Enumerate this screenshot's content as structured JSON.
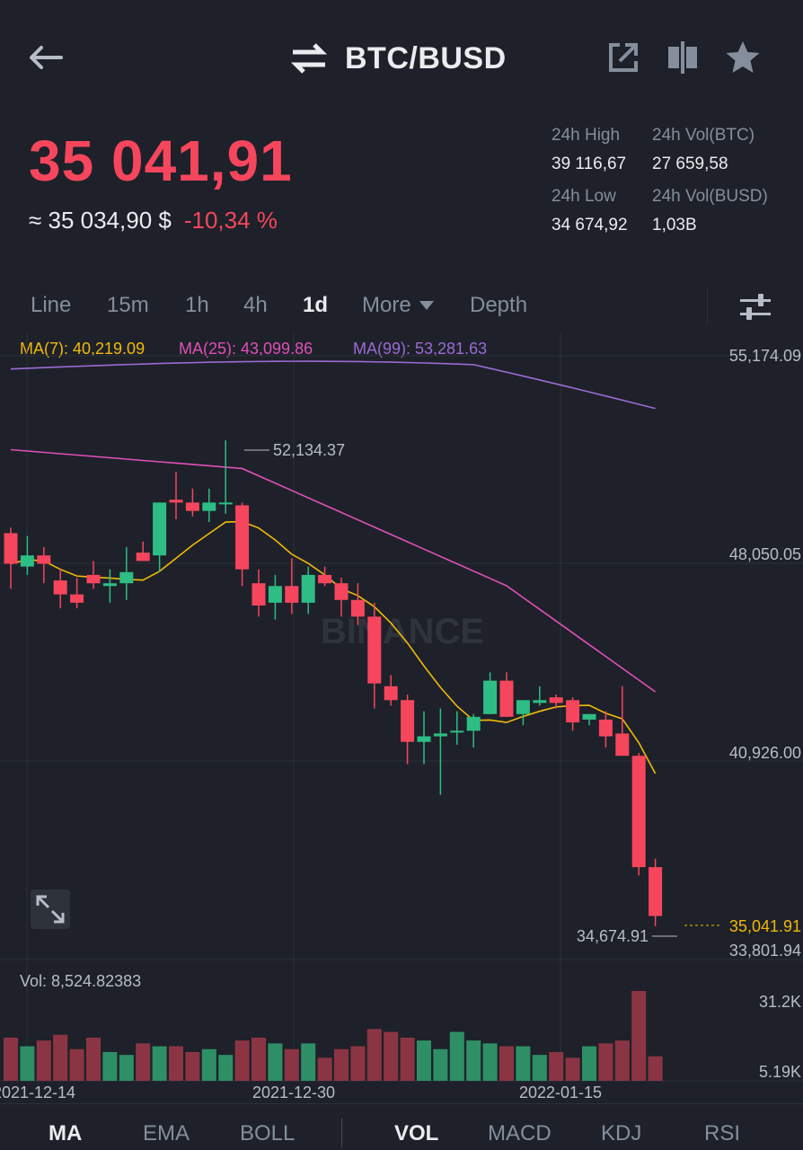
{
  "header": {
    "back_icon": "arrow-left-icon",
    "swap_icon": "swap-arrows-icon",
    "title": "BTC/BUSD",
    "share_icon": "share-icon",
    "compare_icon": "candle-compare-icon",
    "favorite_icon": "star-icon"
  },
  "price": {
    "last": "35 041,91",
    "approx": "≈ 35 034,90 $",
    "change": "-10,34 %"
  },
  "stats": {
    "high_label": "24h High",
    "high_value": "39 116,67",
    "vol_btc_label": "24h Vol(BTC)",
    "vol_btc_value": "27 659,58",
    "low_label": "24h Low",
    "low_value": "34 674,92",
    "vol_busd_label": "24h Vol(BUSD)",
    "vol_busd_value": "1,03B"
  },
  "interval_tabs": [
    "Line",
    "15m",
    "1h",
    "4h",
    "1d",
    "More",
    "Depth"
  ],
  "interval_active": "1d",
  "settings_icon": "sliders-icon",
  "ma_legend": {
    "ma7": "MA(7): 40,219.09",
    "ma25": "MA(25): 43,099.86",
    "ma99": "MA(99): 53,281.63"
  },
  "chart_labels": {
    "y_top": "55,174.09",
    "y_mid1": "48,050.05",
    "y_mid2": "40,926.00",
    "y_low": "33,801.94",
    "current": "35,041.91",
    "max_marker": "52,134.37",
    "min_marker": "34,674.91",
    "watermark": "BINANCE",
    "vol_label": "Vol: 8,524.82383",
    "vol_top": "31.2K",
    "vol_low": "5.19K",
    "x_dates": [
      "2021-12-14",
      "2021-12-30",
      "2022-01-15"
    ]
  },
  "indicators": [
    "MA",
    "EMA",
    "BOLL",
    "VOL",
    "MACD",
    "KDJ",
    "RSI"
  ],
  "colors": {
    "up": "#2ebd85",
    "down": "#f6465d",
    "ma7": "#f0b90b",
    "ma25": "#e04fba",
    "ma99": "#9c6bd6",
    "background": "#1e2129"
  },
  "chart_data": {
    "type": "candlestick",
    "x_labels": [
      "2021-12-14",
      "2021-12-30",
      "2022-01-15"
    ],
    "ylim": [
      33801.94,
      55174.09
    ],
    "candles": [
      {
        "o": 48800,
        "h": 49000,
        "l": 46800,
        "c": 47700
      },
      {
        "o": 47600,
        "h": 48700,
        "l": 47300,
        "c": 48000
      },
      {
        "o": 48000,
        "h": 48300,
        "l": 47000,
        "c": 47700
      },
      {
        "o": 47100,
        "h": 47500,
        "l": 46100,
        "c": 46600
      },
      {
        "o": 46600,
        "h": 47200,
        "l": 46100,
        "c": 46300
      },
      {
        "o": 47300,
        "h": 47800,
        "l": 46800,
        "c": 47000
      },
      {
        "o": 46900,
        "h": 47500,
        "l": 46300,
        "c": 47000
      },
      {
        "o": 47000,
        "h": 48300,
        "l": 46400,
        "c": 47400
      },
      {
        "o": 48100,
        "h": 48500,
        "l": 47800,
        "c": 47800
      },
      {
        "o": 48000,
        "h": 49900,
        "l": 47400,
        "c": 49900
      },
      {
        "o": 50000,
        "h": 51000,
        "l": 49300,
        "c": 49900
      },
      {
        "o": 49900,
        "h": 50400,
        "l": 49400,
        "c": 49600
      },
      {
        "o": 49600,
        "h": 50400,
        "l": 49200,
        "c": 49900
      },
      {
        "o": 49900,
        "h": 52134.37,
        "l": 49500,
        "c": 49900
      },
      {
        "o": 49800,
        "h": 49900,
        "l": 46900,
        "c": 47500
      },
      {
        "o": 47000,
        "h": 47500,
        "l": 45800,
        "c": 46200
      },
      {
        "o": 46300,
        "h": 47300,
        "l": 45700,
        "c": 46900
      },
      {
        "o": 46900,
        "h": 47900,
        "l": 45900,
        "c": 46300
      },
      {
        "o": 46300,
        "h": 47600,
        "l": 45900,
        "c": 47300
      },
      {
        "o": 47300,
        "h": 47600,
        "l": 46900,
        "c": 47000
      },
      {
        "o": 47000,
        "h": 47200,
        "l": 45800,
        "c": 46400
      },
      {
        "o": 46400,
        "h": 47000,
        "l": 45500,
        "c": 45800
      },
      {
        "o": 45800,
        "h": 46300,
        "l": 42500,
        "c": 43400
      },
      {
        "o": 43300,
        "h": 43700,
        "l": 42600,
        "c": 42800
      },
      {
        "o": 42800,
        "h": 43000,
        "l": 40500,
        "c": 41300
      },
      {
        "o": 41300,
        "h": 42400,
        "l": 40500,
        "c": 41500
      },
      {
        "o": 41500,
        "h": 42500,
        "l": 39400,
        "c": 41600
      },
      {
        "o": 41700,
        "h": 42400,
        "l": 41200,
        "c": 41700
      },
      {
        "o": 41700,
        "h": 42300,
        "l": 41100,
        "c": 42200
      },
      {
        "o": 42300,
        "h": 43800,
        "l": 42300,
        "c": 43500
      },
      {
        "o": 43500,
        "h": 43800,
        "l": 42200,
        "c": 42200
      },
      {
        "o": 42300,
        "h": 42800,
        "l": 41900,
        "c": 42800
      },
      {
        "o": 42700,
        "h": 43300,
        "l": 42600,
        "c": 42800
      },
      {
        "o": 42900,
        "h": 43000,
        "l": 42500,
        "c": 42700
      },
      {
        "o": 42800,
        "h": 42900,
        "l": 41700,
        "c": 42000
      },
      {
        "o": 42100,
        "h": 42300,
        "l": 41900,
        "c": 42300
      },
      {
        "o": 42100,
        "h": 42400,
        "l": 41100,
        "c": 41500
      },
      {
        "o": 41600,
        "h": 43300,
        "l": 40800,
        "c": 40800
      },
      {
        "o": 40800,
        "h": 40900,
        "l": 36500,
        "c": 36800
      },
      {
        "o": 36800,
        "h": 37100,
        "l": 34674.91,
        "c": 35041.91
      }
    ],
    "ma7_last": 40219.09,
    "ma25_last": 43099.86,
    "ma99_last": 53281.63,
    "volume": {
      "label": "Vol: 8,524.82383",
      "ylim": [
        5190,
        31200
      ],
      "values": [
        15000,
        12000,
        14000,
        16000,
        11000,
        15000,
        10000,
        9000,
        13000,
        12000,
        12000,
        10000,
        11000,
        9000,
        14000,
        15000,
        13000,
        11000,
        13000,
        8000,
        11000,
        12000,
        18000,
        17000,
        15000,
        14000,
        11000,
        17000,
        14000,
        13000,
        12000,
        12000,
        9000,
        10000,
        8000,
        12000,
        13000,
        14000,
        31200,
        8524
      ]
    }
  }
}
